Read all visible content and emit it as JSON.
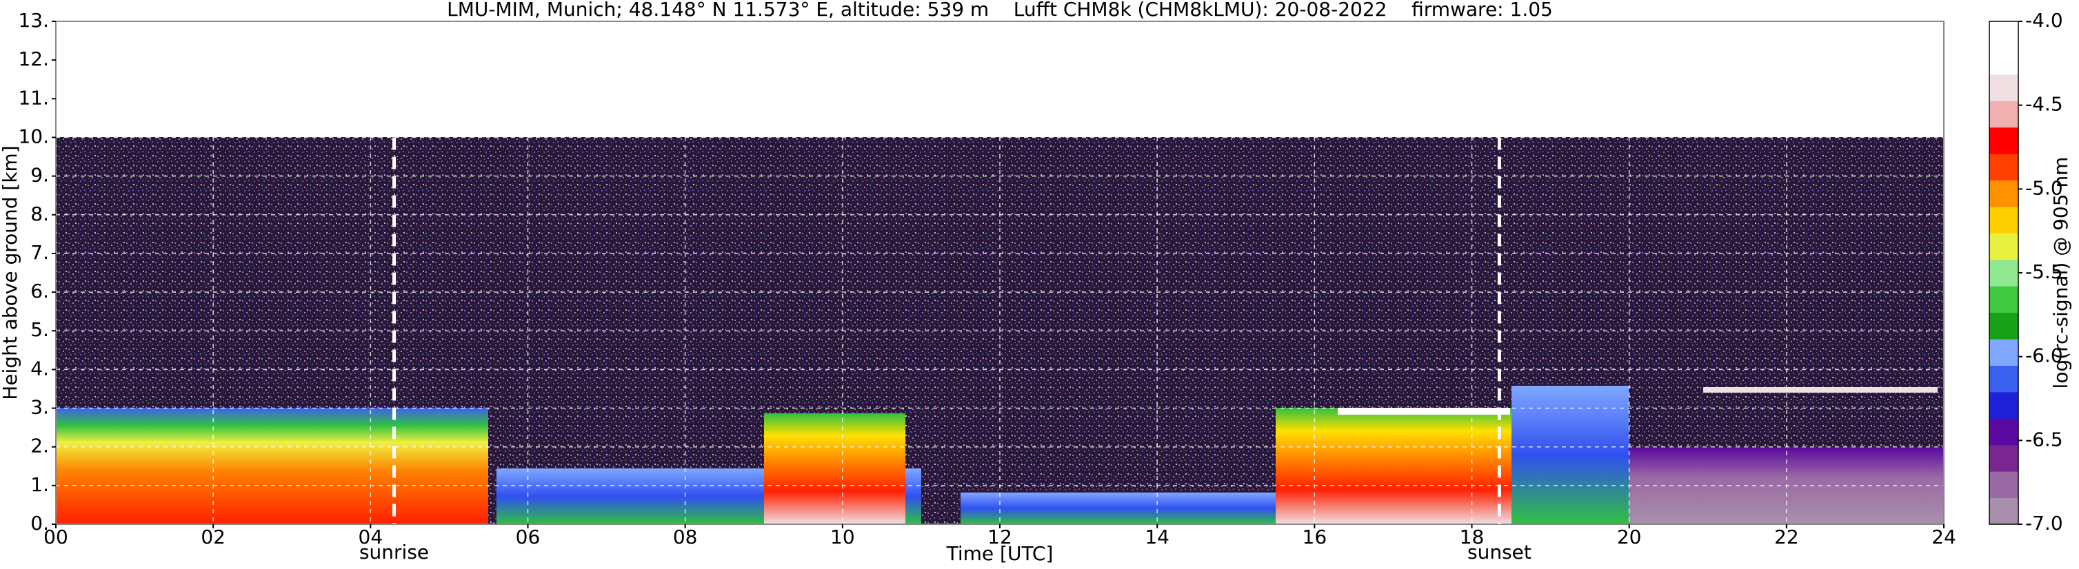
{
  "chart_data": {
    "type": "heatmap",
    "title": "LMU-MIM, Munich; 48.148° N 11.573° E, altitude: 539 m    Lufft CHM8k (CHM8kLMU): 20-08-2022    firmware: 1.05",
    "xlabel": "Time [UTC]",
    "ylabel": "Height above ground [km]",
    "xlim": [
      0,
      24
    ],
    "xticks": [
      {
        "value": 0,
        "label": "00"
      },
      {
        "value": 2,
        "label": "02"
      },
      {
        "value": 4,
        "label": "04"
      },
      {
        "value": 6,
        "label": "06"
      },
      {
        "value": 8,
        "label": "08"
      },
      {
        "value": 10,
        "label": "10"
      },
      12,
      14,
      16,
      18,
      20,
      22,
      24
    ],
    "ylim": [
      0,
      13
    ],
    "yticks": [
      {
        "value": 0,
        "label": "0."
      },
      {
        "value": 1,
        "label": "1."
      },
      {
        "value": 2,
        "label": "2."
      },
      {
        "value": 3,
        "label": "3."
      },
      {
        "value": 4,
        "label": "4."
      },
      {
        "value": 5,
        "label": "5."
      },
      {
        "value": 6,
        "label": "6."
      },
      {
        "value": 7,
        "label": "7."
      },
      {
        "value": 8,
        "label": "8."
      },
      {
        "value": 9,
        "label": "9."
      },
      {
        "value": 10,
        "label": "10."
      },
      {
        "value": 11,
        "label": "11."
      },
      {
        "value": 12,
        "label": "12."
      },
      {
        "value": 13,
        "label": "13."
      }
    ],
    "grid": true,
    "annotations": [
      {
        "text": "sunrise",
        "x": 4.3
      },
      {
        "text": "sunset",
        "x": 18.35
      }
    ],
    "colorbar": {
      "label": "log(rc-signal) @ 905 nm",
      "clim": [
        -7,
        -4
      ],
      "ticks": [
        {
          "value": -7,
          "label": "-7.0"
        },
        -6.5,
        {
          "value": -6,
          "label": "-6.0"
        },
        -5.5,
        {
          "value": -5,
          "label": "-5.0"
        },
        -4.5,
        {
          "value": -4,
          "label": "-4.0"
        }
      ],
      "colors": [
        "#a890ac",
        "#9a6aa4",
        "#7a2690",
        "#5a0aa0",
        "#2020d8",
        "#3a60f0",
        "#80a8ff",
        "#18a018",
        "#40c840",
        "#90e890",
        "#e8f040",
        "#ffd000",
        "#ff9000",
        "#ff4000",
        "#ff0000",
        "#f0b0b0",
        "#f0e0e4",
        "#ffffff",
        "#ffffff"
      ]
    }
  }
}
